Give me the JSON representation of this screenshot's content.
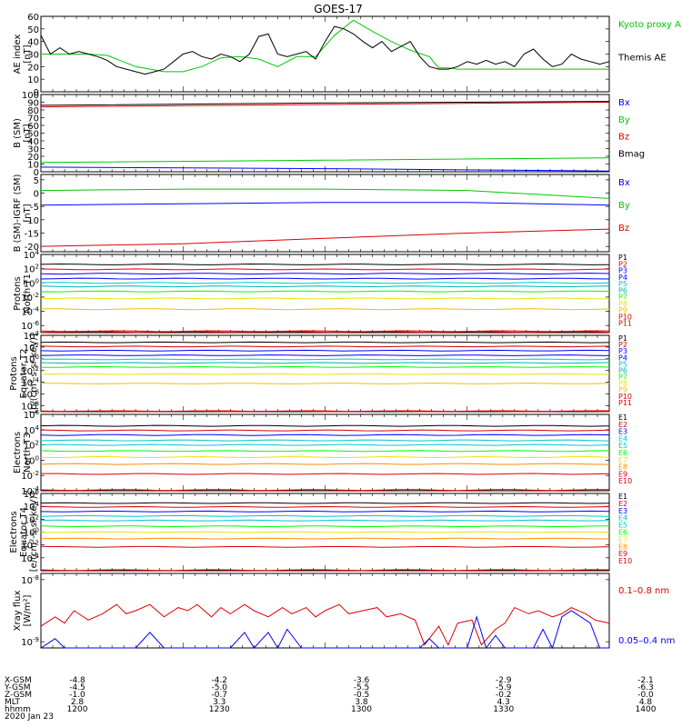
{
  "title": "GOES-17",
  "colors": {
    "black": "#000000",
    "green": "#00c800",
    "red": "#dd0000",
    "blue": "#0000ff",
    "cyan": "#00c8c8",
    "yellow": "#e6e600",
    "orange": "#ff8c00",
    "gold": "#f0c000",
    "greenbright": "#00ff00",
    "teal": "#00b4b4"
  },
  "orbit": {
    "row_labels": [
      "X-GSM",
      "Y-GSM",
      "Z-GSM",
      "MLT",
      "hhmm",
      "2020 Jan 23"
    ],
    "columns": [
      {
        "x": "-4.8",
        "y": "-4.5",
        "z": "-1.0",
        "mlt": "2.8",
        "hhmm": "1200"
      },
      {
        "x": "-4.2",
        "y": "-5.0",
        "z": "-0.7",
        "mlt": "3.3",
        "hhmm": "1230"
      },
      {
        "x": "-3.6",
        "y": "-5.5",
        "z": "-0.5",
        "mlt": "3.8",
        "hhmm": "1300"
      },
      {
        "x": "-2.9",
        "y": "-5.9",
        "z": "-0.2",
        "mlt": "4.3",
        "hhmm": "1330"
      },
      {
        "x": "-2.1",
        "y": "-6.3",
        "z": "-0.0",
        "mlt": "4.8",
        "hhmm": "1400"
      }
    ]
  },
  "chart_data": [
    {
      "type": "line",
      "ylabel": "AE index [nT]",
      "ylim": [
        0,
        60
      ],
      "yticks": [
        "0",
        "10",
        "20",
        "30",
        "40",
        "50",
        "60"
      ],
      "x_minutes": [
        0,
        120
      ],
      "series": [
        {
          "name": "Kyoto proxy AE",
          "color": "green",
          "x": [
            0,
            6,
            10,
            14,
            20,
            26,
            30,
            34,
            38,
            42,
            46,
            50,
            54,
            58,
            62,
            66,
            70,
            74,
            78,
            82,
            84,
            86,
            88,
            92,
            98,
            104,
            110,
            116,
            120
          ],
          "y": [
            30,
            30,
            30,
            29,
            20,
            16,
            16,
            20,
            27,
            28,
            26,
            20,
            28,
            28,
            45,
            57,
            48,
            40,
            33,
            28,
            19,
            19,
            18,
            18,
            18,
            18,
            18,
            18,
            18
          ]
        },
        {
          "name": "Themis AE",
          "color": "black",
          "x": [
            0,
            2,
            4,
            6,
            8,
            10,
            12,
            14,
            16,
            18,
            20,
            22,
            24,
            26,
            28,
            30,
            32,
            34,
            36,
            38,
            40,
            42,
            44,
            46,
            48,
            50,
            52,
            54,
            56,
            58,
            60,
            62,
            64,
            66,
            68,
            70,
            72,
            74,
            76,
            78,
            80,
            82,
            84,
            86,
            88,
            90,
            92,
            94,
            96,
            98,
            100,
            102,
            104,
            106,
            108,
            110,
            112,
            114,
            116,
            118,
            120
          ],
          "y": [
            45,
            30,
            35,
            30,
            32,
            30,
            28,
            25,
            20,
            18,
            16,
            14,
            16,
            18,
            24,
            30,
            32,
            28,
            26,
            30,
            28,
            24,
            30,
            44,
            46,
            30,
            28,
            30,
            32,
            26,
            40,
            52,
            50,
            46,
            40,
            35,
            40,
            32,
            36,
            40,
            28,
            20,
            18,
            18,
            20,
            24,
            22,
            25,
            22,
            24,
            20,
            30,
            34,
            26,
            20,
            22,
            30,
            26,
            24,
            22,
            24
          ]
        }
      ]
    },
    {
      "type": "line",
      "ylabel": "B (SM) [nT]",
      "ylim": [
        0,
        100
      ],
      "yticks": [
        "0",
        "10",
        "20",
        "30",
        "40",
        "50",
        "60",
        "70",
        "80",
        "90",
        "100"
      ],
      "series": [
        {
          "name": "Bx",
          "color": "blue",
          "x": [
            0,
            60,
            120
          ],
          "y": [
            6,
            4,
            1
          ]
        },
        {
          "name": "By",
          "color": "green",
          "x": [
            0,
            60,
            120
          ],
          "y": [
            12,
            15,
            18
          ]
        },
        {
          "name": "Bz",
          "color": "red",
          "x": [
            0,
            60,
            120
          ],
          "y": [
            84,
            87,
            90
          ]
        },
        {
          "name": "Bmag",
          "color": "black",
          "x": [
            0,
            60,
            120
          ],
          "y": [
            86,
            89,
            91
          ]
        }
      ]
    },
    {
      "type": "line",
      "ylabel": "B (SM)-IGRF (SM) [nT]",
      "ylim": [
        -22,
        7
      ],
      "yticks": [
        "-20",
        "-15",
        "-10",
        "-5",
        "0",
        "5"
      ],
      "series": [
        {
          "name": "Bx",
          "color": "blue",
          "x": [
            0,
            30,
            60,
            90,
            120
          ],
          "y": [
            -4.5,
            -4,
            -3.5,
            -3.5,
            -4.5
          ]
        },
        {
          "name": "By",
          "color": "green",
          "x": [
            0,
            30,
            60,
            90,
            110,
            120
          ],
          "y": [
            1,
            1.5,
            1.5,
            1,
            -1,
            -2
          ]
        },
        {
          "name": "Bz",
          "color": "red",
          "x": [
            0,
            30,
            60,
            90,
            120
          ],
          "y": [
            -20,
            -19,
            -17,
            -15,
            -13.5
          ]
        }
      ]
    },
    {
      "type": "line",
      "log": true,
      "ylabel": "Protons North T1",
      "ylim": [
        -7,
        4
      ],
      "yticks": [
        "10^-6",
        "10^-4",
        "10^-2",
        "10^0",
        "10^2",
        "10^4"
      ],
      "series": [
        {
          "name": "P1",
          "color": "black",
          "y": 2.6
        },
        {
          "name": "P2",
          "color": "red",
          "y": 1.9
        },
        {
          "name": "P3",
          "color": "blue",
          "y": 1.3
        },
        {
          "name": "P4",
          "color": "blue",
          "y": 0.6
        },
        {
          "name": "P5",
          "color": "cyan",
          "y": 0.0
        },
        {
          "name": "P6",
          "color": "teal",
          "y": -0.5
        },
        {
          "name": "P7",
          "color": "greenbright",
          "y": -1.2
        },
        {
          "name": "P8",
          "color": "yellow",
          "y": -2.2
        },
        {
          "name": "P9",
          "color": "gold",
          "y": -3.7
        },
        {
          "name": "P10",
          "color": "red",
          "y": -6.8
        },
        {
          "name": "P11",
          "color": "red",
          "y": -6.9
        }
      ]
    },
    {
      "type": "line",
      "log": true,
      "ylabel": "Protons Equator T2 [p/(cm²-s-sr-keV)]",
      "ylim": [
        -9,
        4
      ],
      "yticks": [
        "10^-8",
        "10^-6",
        "10^-4",
        "10^-2",
        "10^0",
        "10^2",
        "10^4"
      ],
      "series": [
        {
          "name": "P1",
          "color": "black",
          "y": 2.8
        },
        {
          "name": "P2",
          "color": "red",
          "y": 2.1
        },
        {
          "name": "P3",
          "color": "blue",
          "y": 1.4
        },
        {
          "name": "P4",
          "color": "blue",
          "y": 0.6
        },
        {
          "name": "P5",
          "color": "cyan",
          "y": -0.1
        },
        {
          "name": "P6",
          "color": "teal",
          "y": -0.7
        },
        {
          "name": "P7",
          "color": "greenbright",
          "y": -1.4
        },
        {
          "name": "P8",
          "color": "yellow",
          "y": -2.6
        },
        {
          "name": "P9",
          "color": "gold",
          "y": -4.2
        },
        {
          "name": "P10",
          "color": "red",
          "y": -8.9
        },
        {
          "name": "P11",
          "color": "red",
          "y": -8.95
        }
      ]
    },
    {
      "type": "line",
      "log": true,
      "ylabel": "Electrons North T3",
      "ylim": [
        -4,
        6
      ],
      "yticks": [
        "10^-4",
        "10^-2",
        "10^0",
        "10^2",
        "10^4",
        "10^6"
      ],
      "series": [
        {
          "name": "E1",
          "color": "black",
          "y": 4.5
        },
        {
          "name": "E2",
          "color": "red",
          "y": 3.9
        },
        {
          "name": "E3",
          "color": "blue",
          "y": 3.3
        },
        {
          "name": "E4",
          "color": "cyan",
          "y": 2.6
        },
        {
          "name": "E5",
          "color": "cyan",
          "y": 2.0
        },
        {
          "name": "E6",
          "color": "greenbright",
          "y": 1.2
        },
        {
          "name": "E7",
          "color": "yellow",
          "y": 0.4
        },
        {
          "name": "E8",
          "color": "orange",
          "y": -0.5
        },
        {
          "name": "E9",
          "color": "red",
          "y": -1.8
        },
        {
          "name": "E10",
          "color": "red",
          "y": -3.9
        }
      ]
    },
    {
      "type": "line",
      "log": true,
      "ylabel": "Electrons Equator T4 [e/(cm²-s-sr-keV)]",
      "ylim": [
        -6,
        6
      ],
      "yticks": [
        "10^-4",
        "10^-2",
        "10^0",
        "10^2",
        "10^4",
        "10^6"
      ],
      "series": [
        {
          "name": "E1",
          "color": "black",
          "y": 4.5
        },
        {
          "name": "E2",
          "color": "red",
          "y": 3.9
        },
        {
          "name": "E3",
          "color": "blue",
          "y": 3.2
        },
        {
          "name": "E4",
          "color": "cyan",
          "y": 2.5
        },
        {
          "name": "E5",
          "color": "cyan",
          "y": 1.8
        },
        {
          "name": "E6",
          "color": "greenbright",
          "y": 0.9
        },
        {
          "name": "E7",
          "color": "yellow",
          "y": 0.0
        },
        {
          "name": "E8",
          "color": "orange",
          "y": -1.0
        },
        {
          "name": "E9",
          "color": "red",
          "y": -2.3
        },
        {
          "name": "E10",
          "color": "red",
          "y": -5.9
        }
      ]
    },
    {
      "type": "line",
      "log": true,
      "ylabel": "Xray flux [W/m²]",
      "ylim": [
        -9.1,
        -7.9
      ],
      "yticks": [
        "10^-8",
        "10^-9"
      ],
      "series": [
        {
          "name": "0.1–0.8 nm",
          "color": "red",
          "x": [
            0,
            3,
            5,
            7,
            10,
            13,
            16,
            18,
            20,
            23,
            26,
            29,
            31,
            33,
            36,
            38,
            40,
            43,
            45,
            48,
            51,
            53,
            56,
            58,
            60,
            63,
            65,
            68,
            71,
            73,
            76,
            79,
            81,
            84,
            86,
            88,
            91,
            93,
            96,
            98,
            100,
            103,
            105,
            108,
            110,
            112,
            115,
            117,
            120
          ],
          "y": [
            -8.75,
            -8.6,
            -8.7,
            -8.5,
            -8.65,
            -8.55,
            -8.4,
            -8.55,
            -8.5,
            -8.4,
            -8.6,
            -8.45,
            -8.5,
            -8.4,
            -8.6,
            -8.45,
            -8.55,
            -8.4,
            -8.5,
            -8.6,
            -8.45,
            -8.55,
            -8.45,
            -8.6,
            -8.5,
            -8.4,
            -8.55,
            -8.5,
            -8.45,
            -8.6,
            -8.55,
            -8.65,
            -9.05,
            -8.75,
            -9.05,
            -8.7,
            -8.65,
            -9.05,
            -8.8,
            -8.7,
            -8.45,
            -8.55,
            -8.5,
            -8.6,
            -8.55,
            -8.45,
            -8.55,
            -8.65,
            -8.7
          ]
        },
        {
          "name": "0.05–0.4 nm",
          "color": "blue",
          "x": [
            0,
            3,
            5,
            7,
            20,
            23,
            26,
            40,
            43,
            45,
            48,
            50,
            52,
            55,
            80,
            82,
            84,
            90,
            92,
            94,
            96,
            98,
            100,
            104,
            106,
            108,
            110,
            112,
            114,
            116,
            118,
            120
          ],
          "y": [
            -9.1,
            -8.95,
            -9.1,
            -9.1,
            -9.1,
            -8.85,
            -9.1,
            -9.1,
            -8.85,
            -9.1,
            -8.85,
            -9.1,
            -8.8,
            -9.1,
            -9.1,
            -8.95,
            -9.1,
            -9.1,
            -8.6,
            -9.1,
            -8.9,
            -9.1,
            -9.1,
            -9.1,
            -8.8,
            -9.1,
            -8.6,
            -8.5,
            -8.6,
            -8.7,
            -9.1,
            -9.1
          ]
        }
      ]
    }
  ]
}
